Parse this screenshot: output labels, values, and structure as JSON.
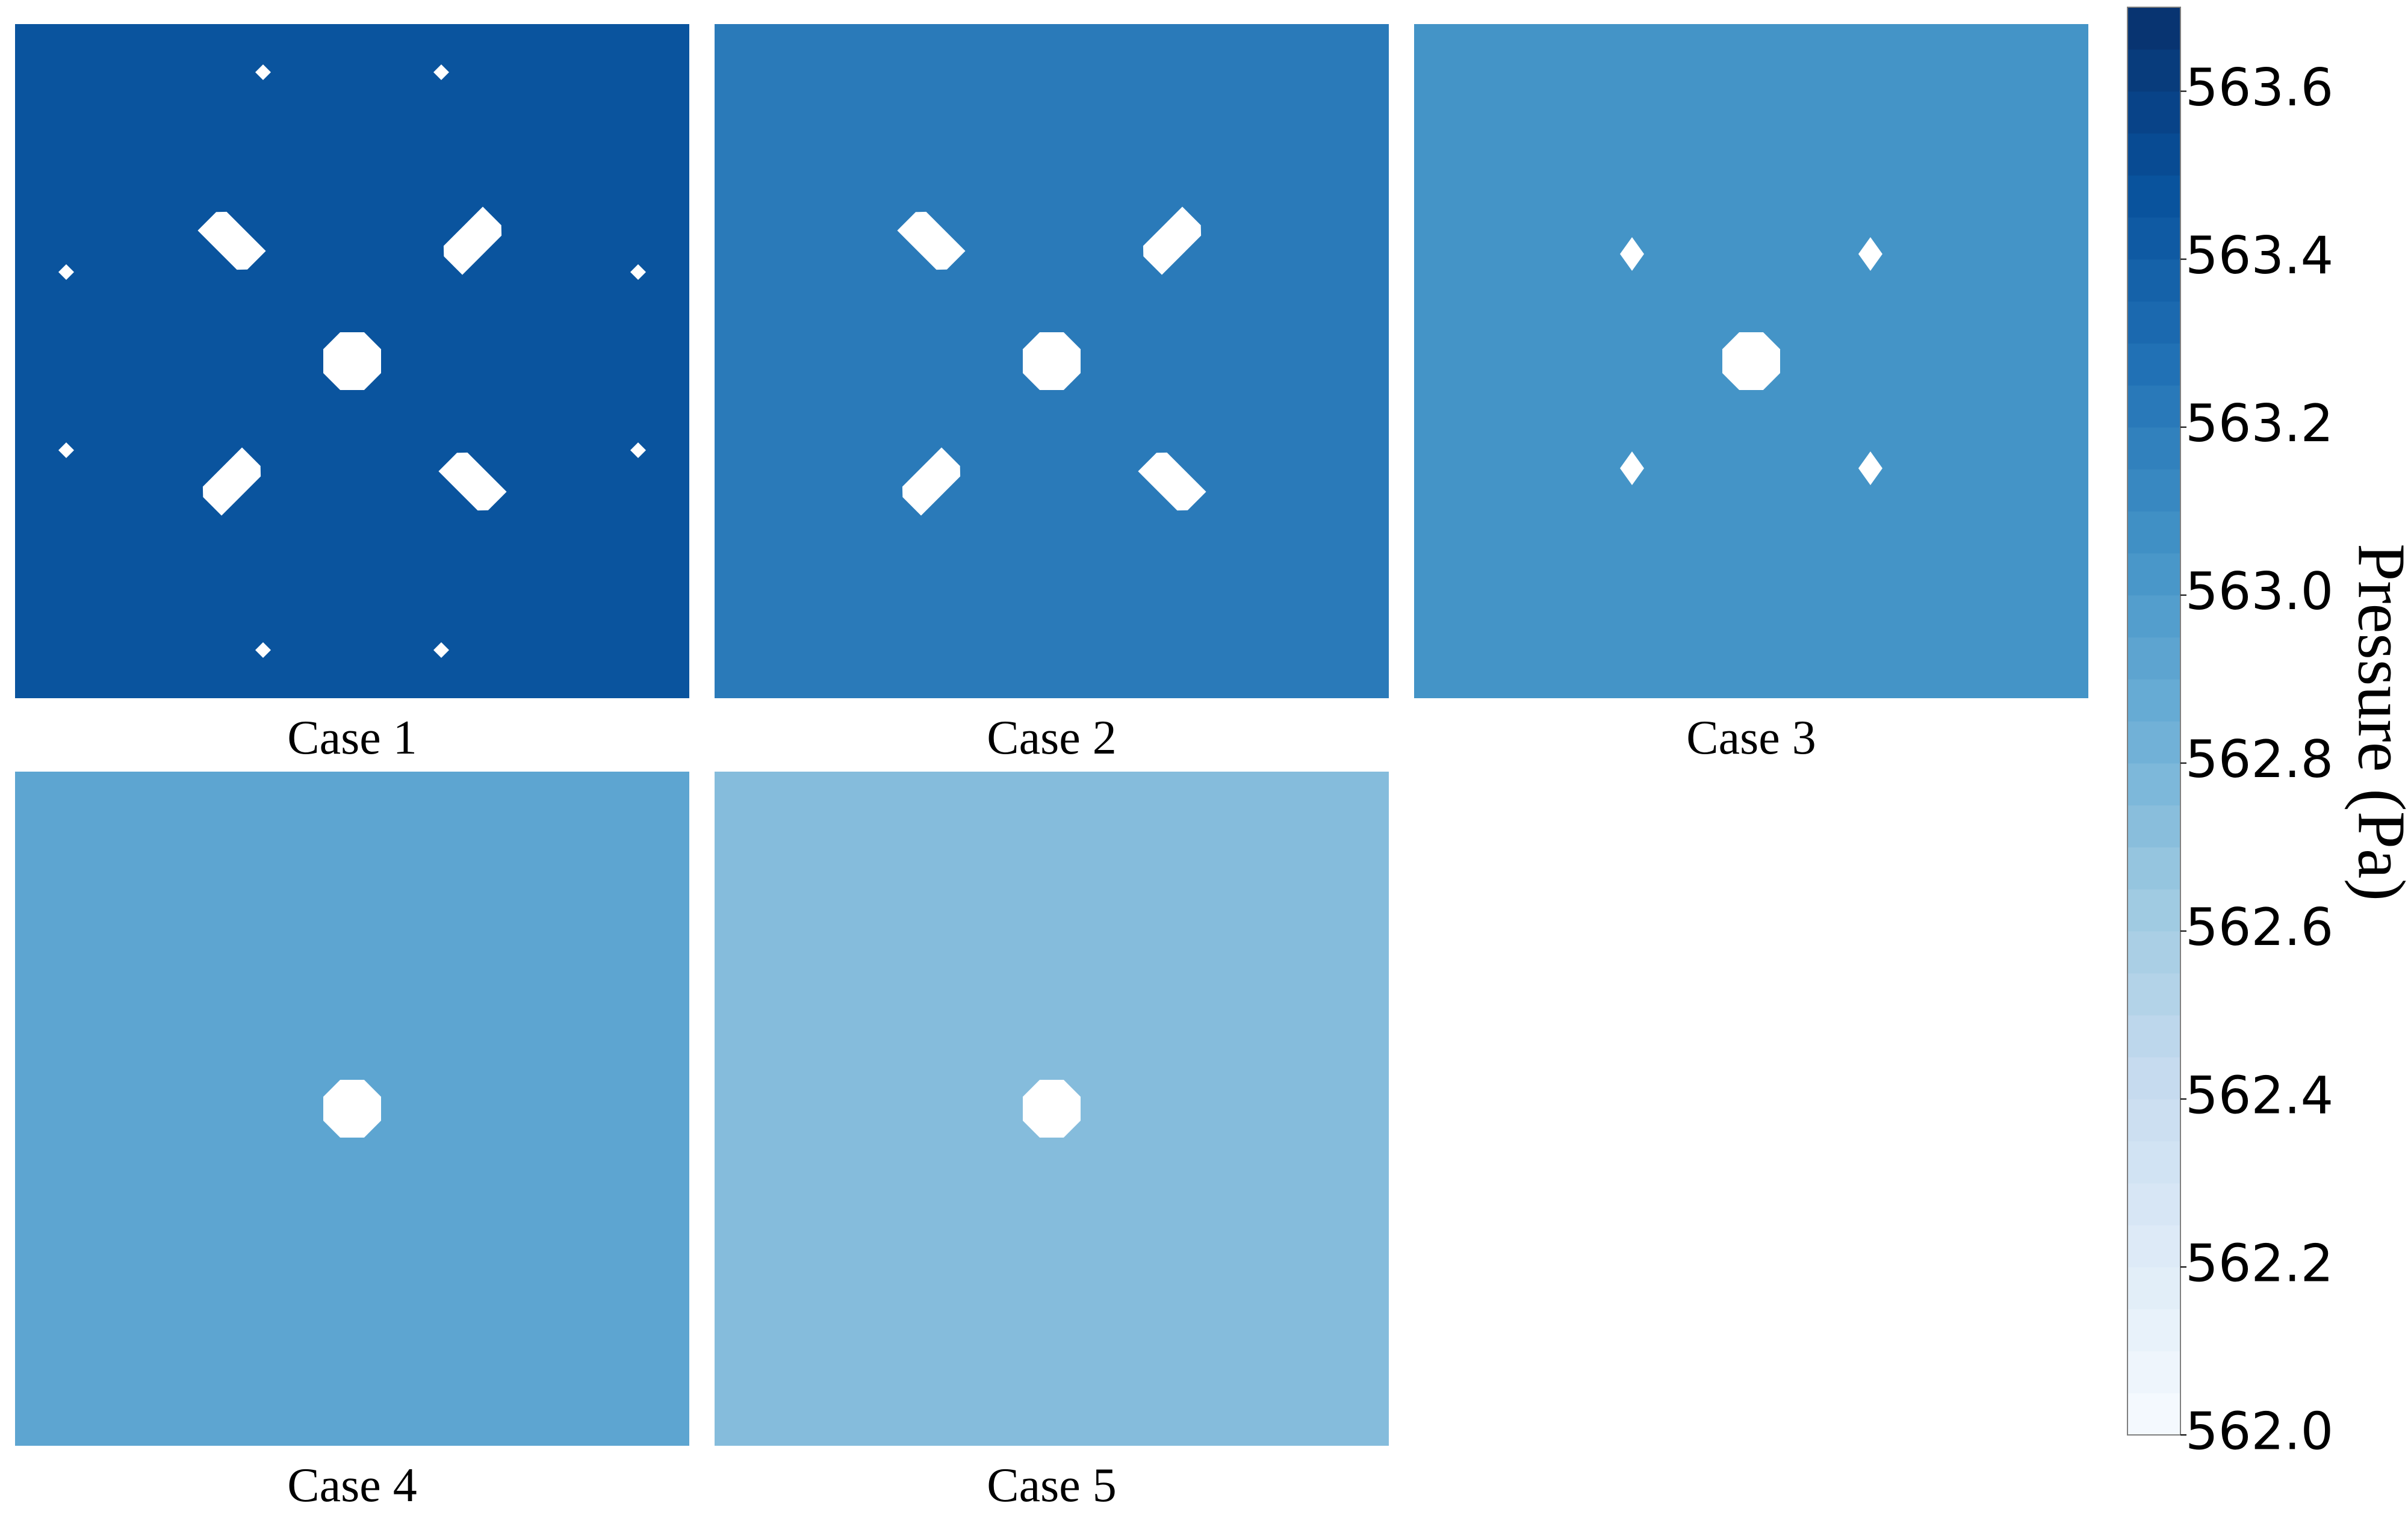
{
  "chart_data": {
    "type": "heatmap",
    "panels": [
      {
        "label": "Case 1",
        "pressure": 563.47,
        "holes": [
          "center",
          "inner-diagonal-slots",
          "outer-diamonds"
        ]
      },
      {
        "label": "Case 2",
        "pressure": 563.22,
        "holes": [
          "center",
          "inner-diagonal-slots"
        ]
      },
      {
        "label": "Case 3",
        "pressure": 563.05,
        "holes": [
          "center",
          "inner-diamonds"
        ]
      },
      {
        "label": "Case 4",
        "pressure": 562.92,
        "holes": [
          "center"
        ]
      },
      {
        "label": "Case 5",
        "pressure": 562.74,
        "holes": [
          "center"
        ]
      }
    ],
    "colorbar": {
      "title": "Pressure (Pa)",
      "range": [
        562.0,
        563.7
      ],
      "ticks": [
        "563.6",
        "563.4",
        "563.2",
        "563.0",
        "562.8",
        "562.6",
        "562.4",
        "562.2",
        "562.0"
      ],
      "colormap": "Blues",
      "levels": 34
    }
  }
}
